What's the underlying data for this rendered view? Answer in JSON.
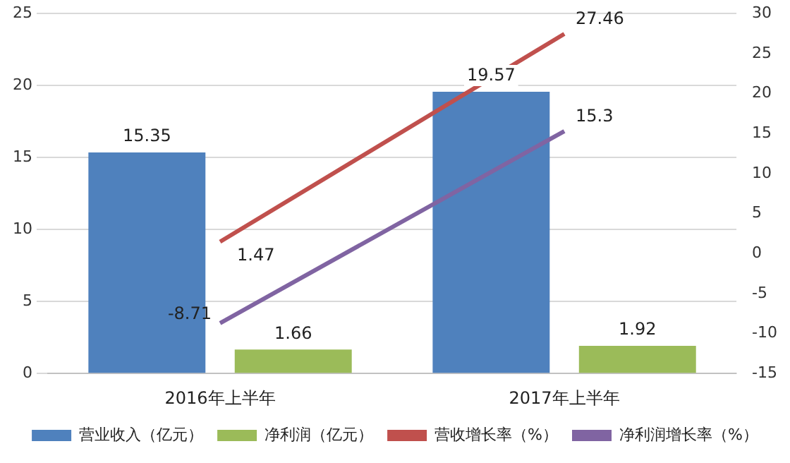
{
  "chart_data": {
    "type": "bar",
    "categories": [
      "2016年上半年",
      "2017年上半年"
    ],
    "series": [
      {
        "name": "营业收入（亿元）",
        "color": "#4f81bd",
        "values": [
          15.35,
          19.57
        ]
      },
      {
        "name": "净利润（亿元）",
        "color": "#9bbb59",
        "values": [
          1.66,
          1.92
        ]
      },
      {
        "name": "营收增长率（%）",
        "color": "#c0504d",
        "type": "line",
        "axis": "y2",
        "values": [
          1.47,
          27.46
        ]
      },
      {
        "name": "净利润增长率（%）",
        "color": "#8064a2",
        "type": "line",
        "axis": "y2",
        "values": [
          -8.71,
          15.3
        ]
      }
    ],
    "ylim": [
      0,
      25
    ],
    "yticks": [
      0,
      5,
      10,
      15,
      20,
      25
    ],
    "y2lim": [
      -15,
      30
    ],
    "y2ticks": [
      -15,
      -10,
      -5,
      0,
      5,
      10,
      15,
      20,
      25,
      30
    ],
    "grid": "y",
    "legend": "bottom",
    "data_labels": true,
    "marker": "none"
  }
}
